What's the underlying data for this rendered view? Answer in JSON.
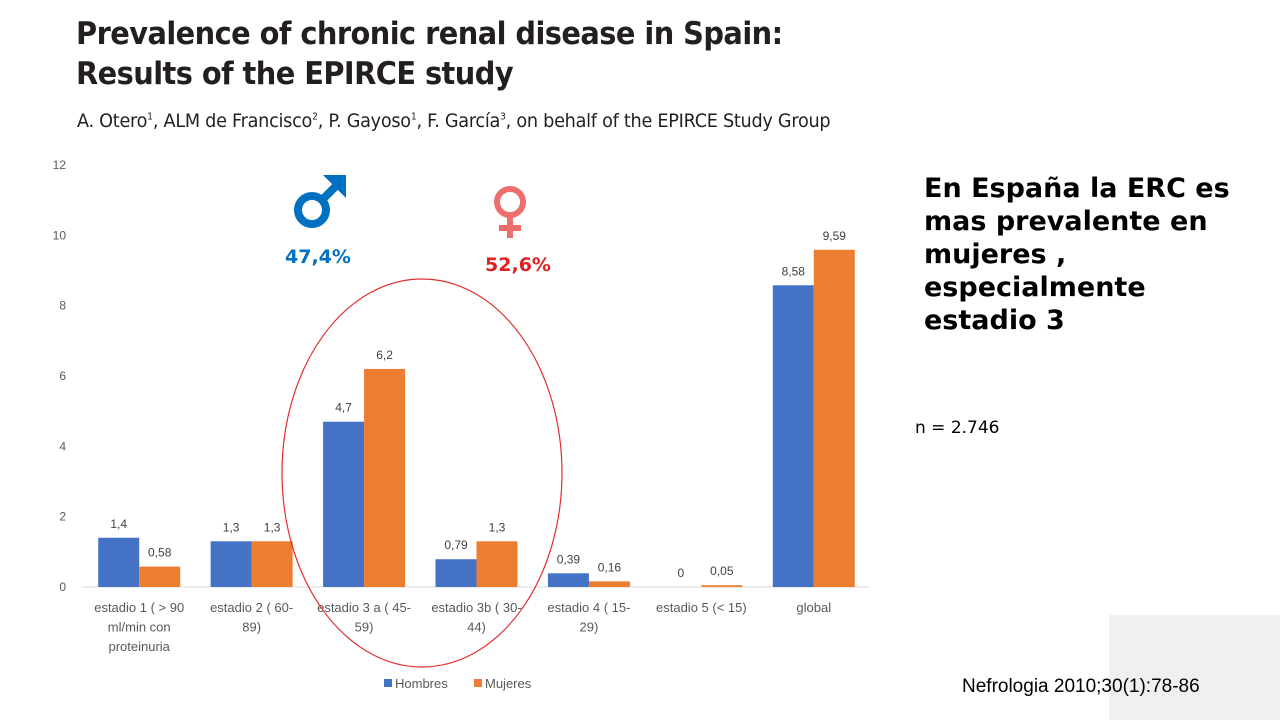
{
  "header": {
    "title_line1": "Prevalence of chronic renal disease in Spain:",
    "title_line2": "Results of the EPIRCE study",
    "authors": [
      {
        "name": "A. Otero",
        "sup": "1"
      },
      {
        "name": "ALM de Francisco",
        "sup": "2"
      },
      {
        "name": "P. Gayoso",
        "sup": "1"
      },
      {
        "name": "F. García",
        "sup": "3"
      }
    ],
    "authors_suffix": "on behalf of the EPIRCE Study Group"
  },
  "annotations": {
    "male_icon": "male-symbol",
    "male_percent": "47,4%",
    "male_color": "#0070c0",
    "female_icon": "female-symbol",
    "female_percent": "52,6%",
    "female_color": "#e11f1f",
    "female_icon_color": "#ee6e6e",
    "highlight_ellipse_color": "#e03030",
    "highlight_categories": [
      "estadio 3 a ( 45-59)",
      "estadio 3b ( 30-44)"
    ]
  },
  "side_note": {
    "text": "En España la ERC es mas prevalente en mujeres , especialmente estadio 3",
    "n_label": "n = 2.746"
  },
  "reference": "Nefrologia 2010;30(1):78-86",
  "chart_data": {
    "type": "bar",
    "title": "",
    "xlabel": "",
    "ylabel": "",
    "ylim": [
      0,
      12
    ],
    "yticks": [
      0,
      2,
      4,
      6,
      8,
      10,
      12
    ],
    "grid": false,
    "legend_position": "bottom",
    "categories": [
      [
        "estadio 1 ( > 90",
        "ml/min con",
        "proteinuria"
      ],
      [
        "estadio 2 ( 60-",
        "89)"
      ],
      [
        "estadio 3 a ( 45-",
        "59)"
      ],
      [
        "estadio 3b ( 30-",
        "44)"
      ],
      [
        "estadio 4 ( 15-",
        "29)"
      ],
      [
        "estadio 5 (< 15)"
      ],
      [
        "global"
      ]
    ],
    "series": [
      {
        "name": "Hombres",
        "color": "#4472c4",
        "values": [
          1.4,
          1.3,
          4.7,
          0.79,
          0.39,
          0,
          8.58
        ],
        "labels": [
          "1,4",
          "1,3",
          "4,7",
          "0,79",
          "0,39",
          "0",
          "8,58"
        ]
      },
      {
        "name": "Mujeres",
        "color": "#ed7d31",
        "values": [
          0.58,
          1.3,
          6.2,
          1.3,
          0.16,
          0.05,
          9.59
        ],
        "labels": [
          "0,58",
          "1,3",
          "6,2",
          "1,3",
          "0,16",
          "0,05",
          "9,59"
        ]
      }
    ]
  }
}
